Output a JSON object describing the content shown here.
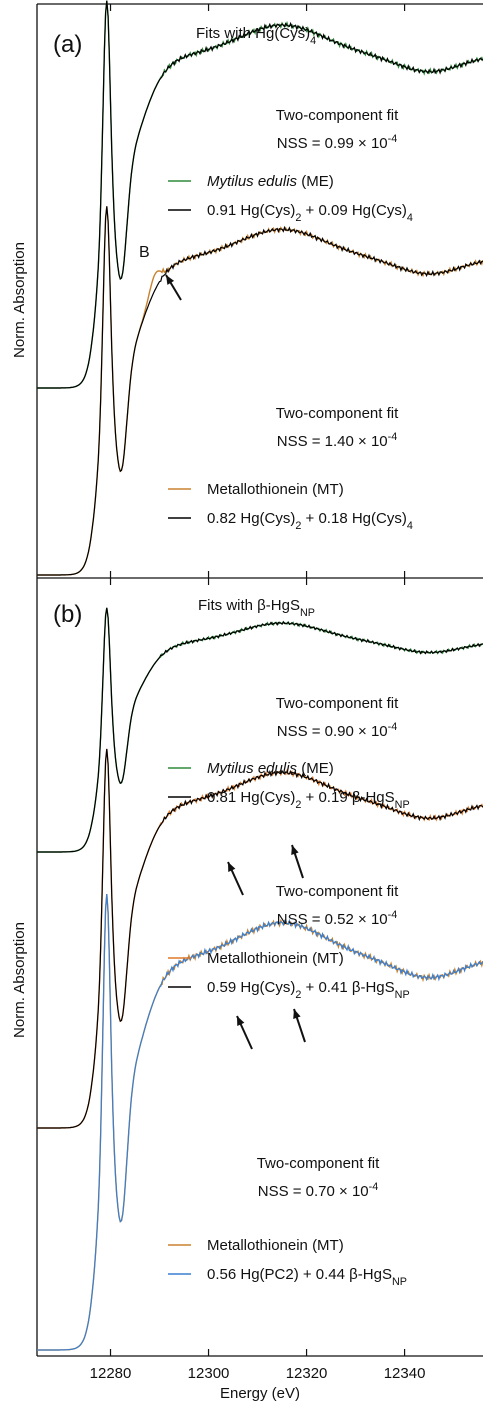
{
  "chart_data": [
    {
      "type": "line",
      "panel_label": "(a)",
      "title": "Fits with Hg(Cys)",
      "title_sub": "4",
      "xlabel": "Energy (eV)",
      "ylabel": "Norm. Absorption",
      "xlim": [
        12265,
        12356
      ],
      "x_ticks": [
        12280,
        12300,
        12320,
        12340
      ],
      "feature_label": "B",
      "colors": {
        "ME": "#2e8b3a",
        "MT": "#e07a2a",
        "fit": "#000000"
      },
      "fits": [
        {
          "heading": "Two-component fit",
          "nss": "NSS = 0.99 × 10",
          "nss_exp": "-4",
          "sample_italic": "Mytilus edulis",
          "sample_rest": " (ME)",
          "fit_parts": [
            "0.91 Hg(Cys)",
            "2",
            " + 0.09 Hg(Cys)",
            "4"
          ],
          "sample_color": "#2e8b3a",
          "fit_color": "#000000"
        },
        {
          "heading": "Two-component fit",
          "nss": "NSS = 1.40 × 10",
          "nss_exp": "-4",
          "sample_italic": "",
          "sample_rest": "Metallothionein (MT)",
          "fit_parts": [
            "0.82 Hg(Cys)",
            "2",
            " + 0.18 Hg(Cys)",
            "4"
          ],
          "sample_color": "#c8822f",
          "fit_color": "#000000"
        }
      ]
    },
    {
      "type": "line",
      "panel_label": "(b)",
      "title": "Fits with β-HgS",
      "title_sub": "NP",
      "xlabel": "Energy (eV)",
      "ylabel": "Norm. Absorption",
      "xlim": [
        12265,
        12356
      ],
      "x_ticks": [
        12280,
        12300,
        12320,
        12340
      ],
      "fits": [
        {
          "heading": "Two-component fit",
          "nss": "NSS = 0.90 × 10",
          "nss_exp": "-4",
          "sample_italic": "Mytilus edulis",
          "sample_rest": " (ME)",
          "fit_parts": [
            "0.81 Hg(Cys)",
            "2",
            " + 0.19 β-HgS",
            "NP"
          ],
          "sample_color": "#2e8b3a",
          "fit_color": "#000000"
        },
        {
          "heading": "Two-component fit",
          "nss": "NSS = 0.52 × 10",
          "nss_exp": "-4",
          "sample_italic": "",
          "sample_rest": "Metallothionein (MT)",
          "fit_parts": [
            "0.59 Hg(Cys)",
            "2",
            " + 0.41 β-HgS",
            "NP"
          ],
          "sample_color": "#e07a2a",
          "fit_color": "#000000"
        },
        {
          "heading": "Two-component fit",
          "nss": "NSS = 0.70 × 10",
          "nss_exp": "-4",
          "sample_italic": "",
          "sample_rest": "Metallothionein (MT)",
          "fit_parts": [
            "0.56 Hg(PC2) + 0.44 β-HgS",
            "NP"
          ],
          "sample_color": "#c8822f",
          "fit_color": "#3a7fd0"
        }
      ]
    }
  ]
}
